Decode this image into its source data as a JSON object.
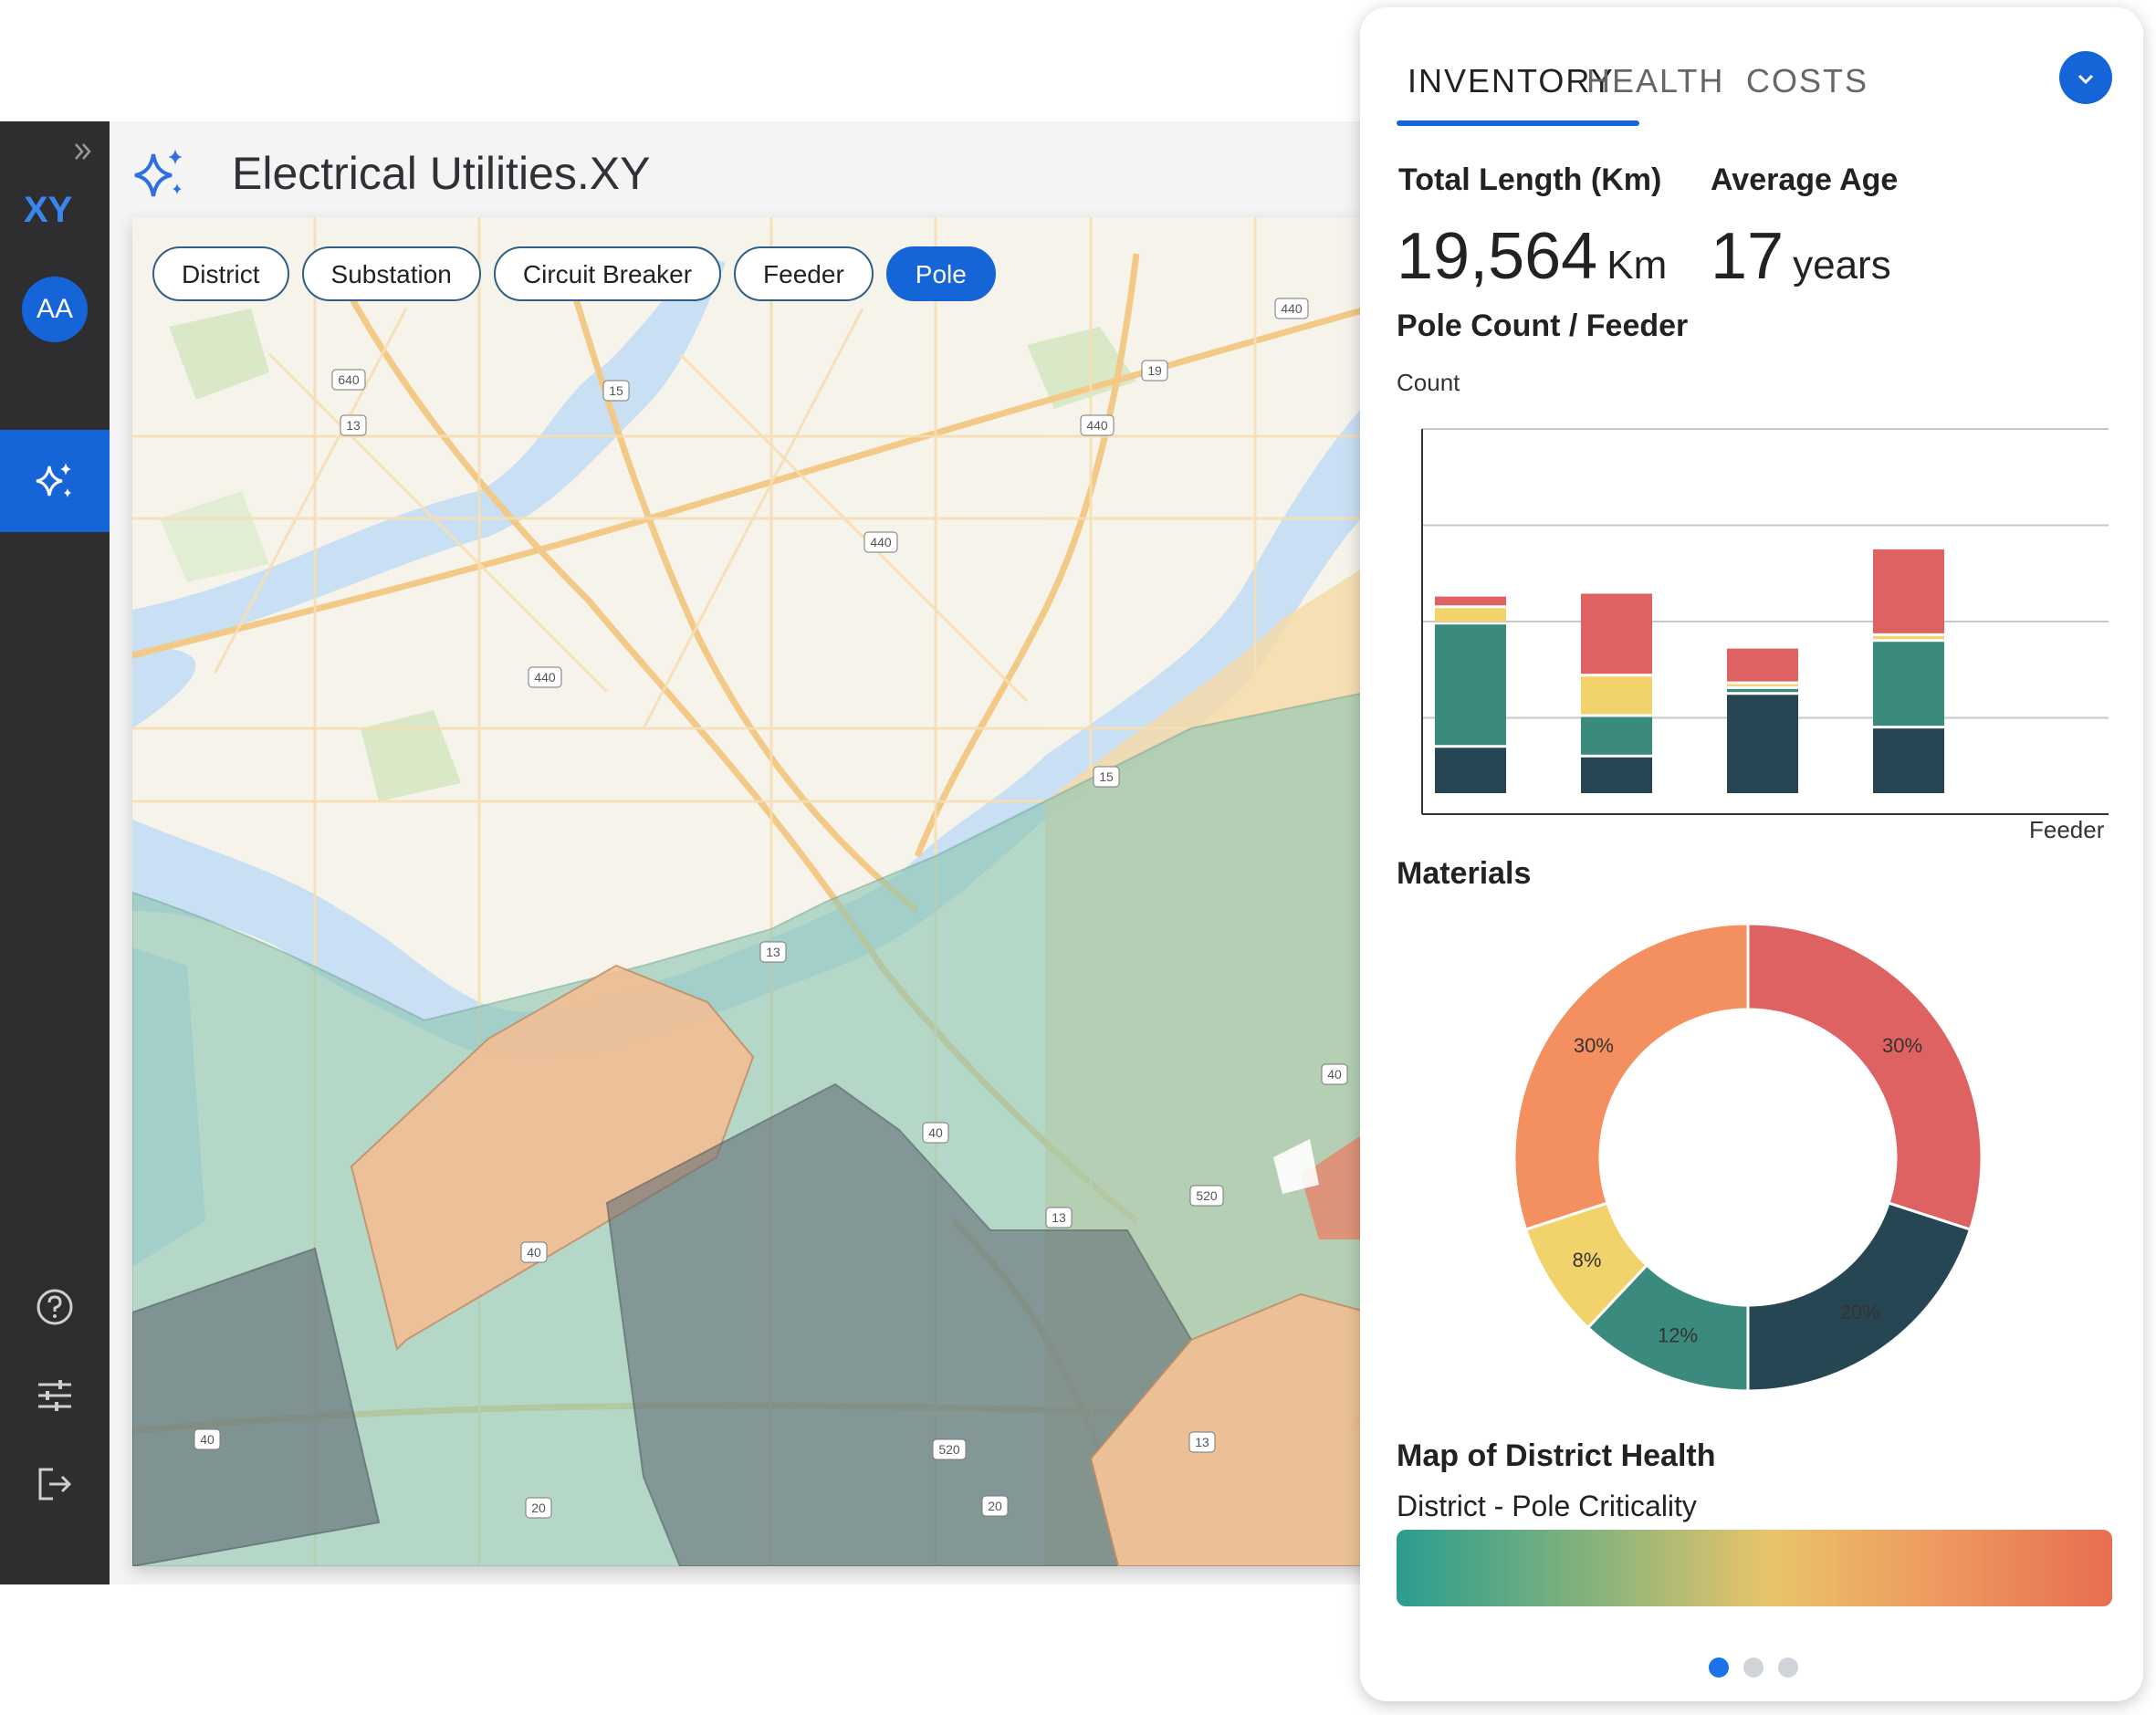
{
  "app": {
    "title": "Electrical Utilities.XY",
    "logo_text": "XY"
  },
  "user": {
    "initials": "AA"
  },
  "sidebar": {
    "expand_icon": "double-chevron-right-icon",
    "active_item_icon": "sparkle-icon",
    "bottom_icons": [
      "help-icon",
      "sliders-icon",
      "logout-icon"
    ]
  },
  "map": {
    "filters": [
      "District",
      "Substation",
      "Circuit Breaker",
      "Feeder",
      "Pole"
    ],
    "active_filter": "Pole",
    "route_shields": [
      "640",
      "13",
      "15",
      "440",
      "19",
      "440",
      "440",
      "440",
      "15",
      "13",
      "40",
      "40",
      "520",
      "13",
      "40",
      "40",
      "520",
      "20",
      "20",
      "13"
    ]
  },
  "panel": {
    "tabs": [
      "INVENTORY",
      "HEALTH",
      "COSTS"
    ],
    "active_tab": "INVENTORY",
    "kpis": [
      {
        "label": "Total Length (Km)",
        "value": "19,564",
        "unit": "Km"
      },
      {
        "label": "Average Age",
        "value": "17",
        "unit": "years"
      }
    ],
    "pole_chart_title": "Pole Count / Feeder",
    "materials_title": "Materials",
    "district_map_title": "Map of District Health",
    "district_map_subtitle": "District - Pole Criticality",
    "page_dots": 3,
    "active_dot": 0
  },
  "colors": {
    "accent": "#1565d8",
    "series": [
      "#264653",
      "#3b8a7e",
      "#f2d26b",
      "#de6262",
      "#f4905f"
    ]
  },
  "chart_data": [
    {
      "type": "bar",
      "stacked": true,
      "ylabel": "Count",
      "xlabel": "Feeder",
      "categories": [
        "",
        "",
        "",
        ""
      ],
      "ylim": [
        0,
        4
      ],
      "grid": true,
      "series": [
        {
          "values": [
            0.5,
            0.4,
            1.05,
            0.7
          ],
          "color": "#264653"
        },
        {
          "values": [
            1.28,
            0.42,
            0.06,
            0.9
          ],
          "color": "#3b8a7e"
        },
        {
          "values": [
            0.17,
            0.42,
            0.05,
            0.06
          ],
          "color": "#f2d26b"
        },
        {
          "values": [
            0.12,
            0.86,
            0.37,
            0.9
          ],
          "color": "#de6262"
        }
      ]
    },
    {
      "type": "pie",
      "donut": true,
      "slices": [
        {
          "label": "30%",
          "value": 30,
          "color": "#de6262"
        },
        {
          "label": "20%",
          "value": 20,
          "color": "#264653"
        },
        {
          "label": "12%",
          "value": 12,
          "color": "#3b8a7e"
        },
        {
          "label": "8%",
          "value": 8,
          "color": "#f2d26b"
        },
        {
          "label": "30%",
          "value": 30,
          "color": "#f4905f"
        }
      ]
    }
  ]
}
